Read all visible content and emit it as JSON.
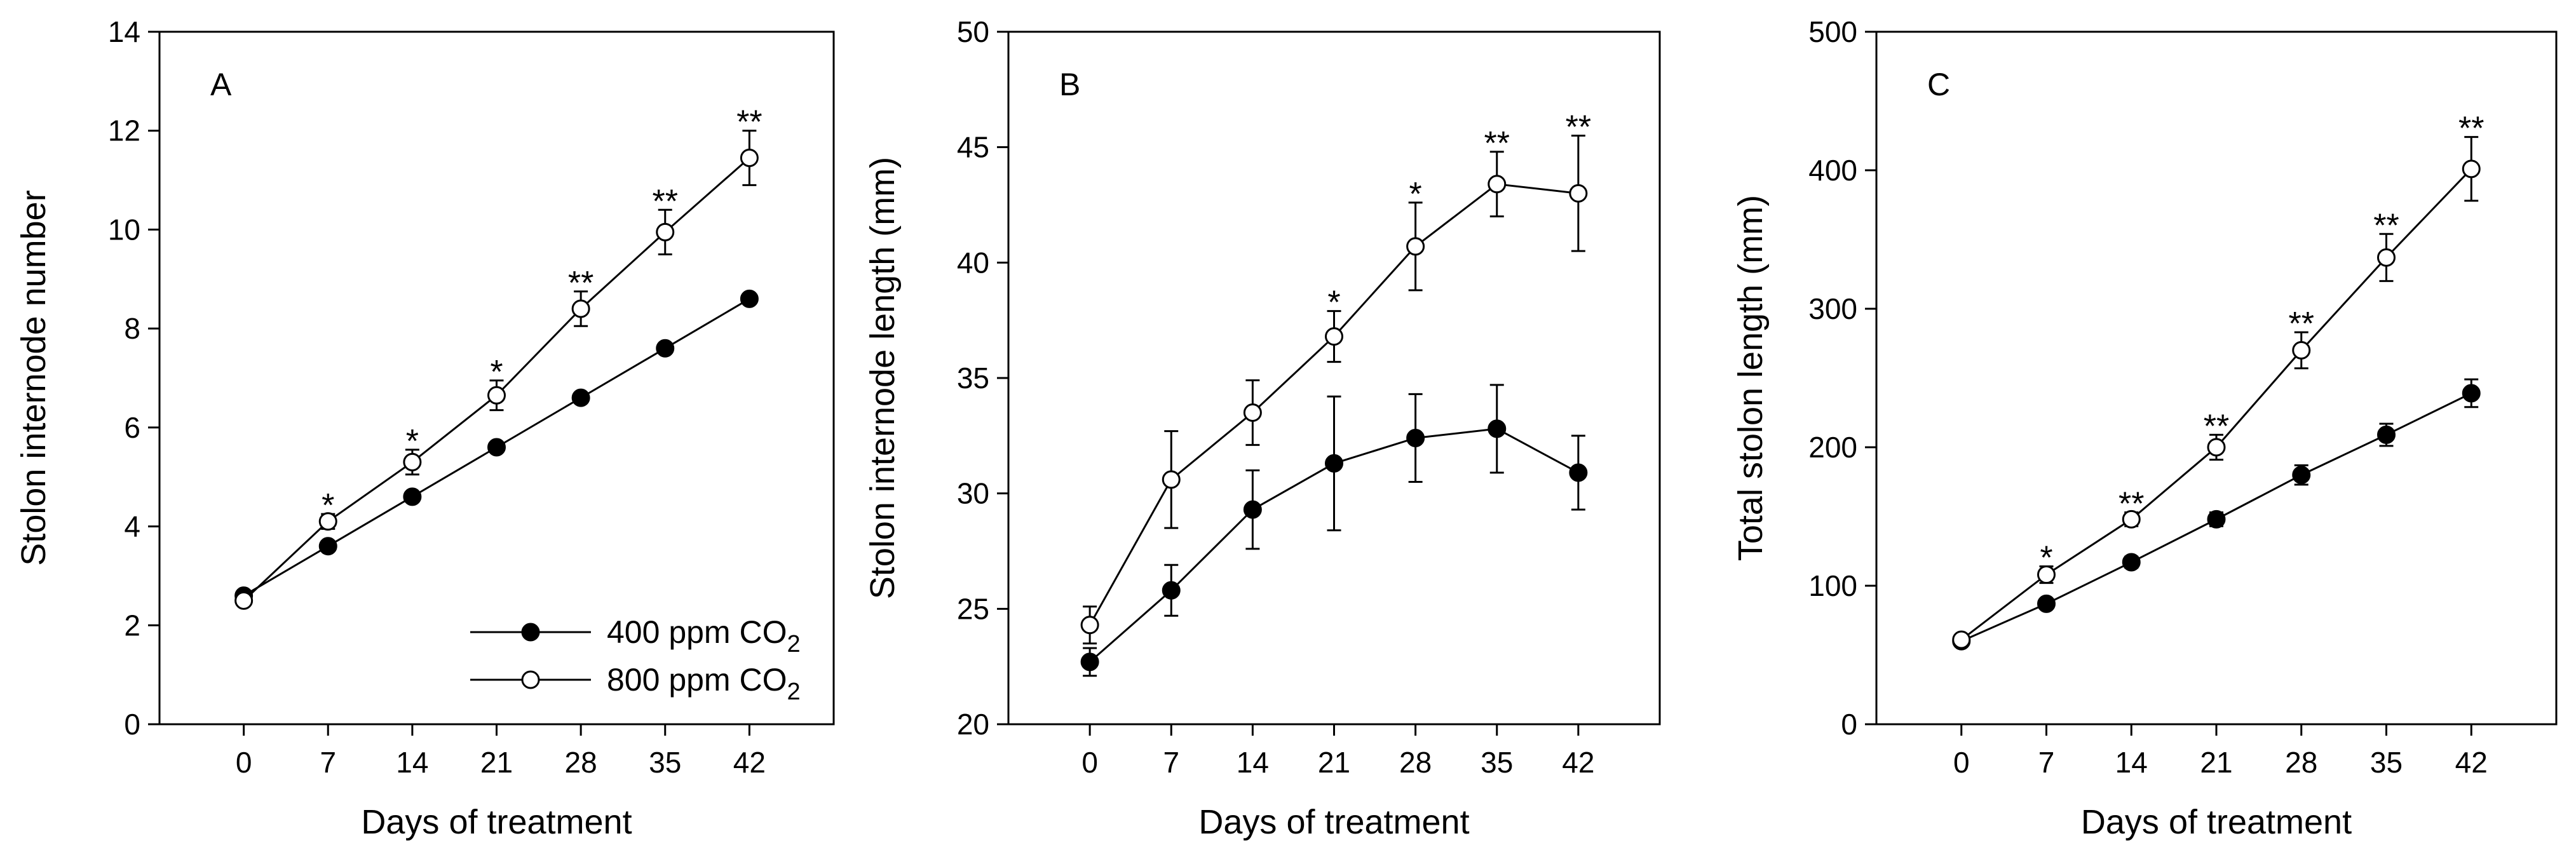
{
  "chart_data": [
    {
      "type": "line",
      "panel_label": "A",
      "xlabel": "Days of treatment",
      "ylabel": "Stolon internode number",
      "x": [
        0,
        7,
        14,
        21,
        28,
        35,
        42
      ],
      "x_tick_labels": [
        "0",
        "7",
        "14",
        "21",
        "28",
        "35",
        "42"
      ],
      "xlim": [
        -7,
        49
      ],
      "ylim": [
        0,
        14
      ],
      "y_ticks": [
        0,
        2,
        4,
        6,
        8,
        10,
        12,
        14
      ],
      "y_tick_labels": [
        "0",
        "2",
        "4",
        "6",
        "8",
        "10",
        "12",
        "14"
      ],
      "series": [
        {
          "name": "400 ppm CO2",
          "marker": "filled",
          "values": [
            2.6,
            3.6,
            4.6,
            5.6,
            6.6,
            7.6,
            8.6
          ],
          "errors": [
            0.05,
            0.1,
            0.1,
            0.1,
            0.1,
            0.1,
            0.1
          ]
        },
        {
          "name": "800 ppm CO2",
          "marker": "open",
          "values": [
            2.5,
            4.1,
            5.3,
            6.65,
            8.4,
            9.95,
            11.45
          ],
          "errors": [
            0.05,
            0.15,
            0.25,
            0.3,
            0.35,
            0.45,
            0.55
          ]
        }
      ],
      "significance": [
        "",
        "*",
        "*",
        "*",
        "**",
        "**",
        "**"
      ],
      "legend": {
        "placement": "bottom-right",
        "entries": [
          {
            "label": "400 ppm CO",
            "sub": "2",
            "marker": "filled"
          },
          {
            "label": "800 ppm CO",
            "sub": "2",
            "marker": "open"
          }
        ]
      }
    },
    {
      "type": "line",
      "panel_label": "B",
      "xlabel": "Days of treatment",
      "ylabel": "Stolon internode length (mm)",
      "x": [
        0,
        7,
        14,
        21,
        28,
        35,
        42
      ],
      "x_tick_labels": [
        "0",
        "7",
        "14",
        "21",
        "28",
        "35",
        "42"
      ],
      "xlim": [
        -7,
        49
      ],
      "ylim": [
        20,
        50
      ],
      "y_ticks": [
        20,
        25,
        30,
        35,
        40,
        45,
        50
      ],
      "y_tick_labels": [
        "20",
        "25",
        "30",
        "35",
        "40",
        "45",
        "50"
      ],
      "series": [
        {
          "name": "400 ppm CO2",
          "marker": "filled",
          "values": [
            22.7,
            25.8,
            29.3,
            31.3,
            32.4,
            32.8,
            30.9
          ],
          "errors": [
            0.6,
            1.1,
            1.7,
            2.9,
            1.9,
            1.9,
            1.6
          ]
        },
        {
          "name": "800 ppm CO2",
          "marker": "open",
          "values": [
            24.3,
            30.6,
            33.5,
            36.8,
            40.7,
            43.4,
            43.0
          ],
          "errors": [
            0.8,
            2.1,
            1.4,
            1.1,
            1.9,
            1.4,
            2.5
          ]
        }
      ],
      "significance": [
        "",
        "",
        "",
        "*",
        "*",
        "**",
        "**"
      ]
    },
    {
      "type": "line",
      "panel_label": "C",
      "xlabel": "Days of treatment",
      "ylabel": "Total stolon length (mm)",
      "x": [
        0,
        7,
        14,
        21,
        28,
        35,
        42
      ],
      "x_tick_labels": [
        "0",
        "7",
        "14",
        "21",
        "28",
        "35",
        "42"
      ],
      "xlim": [
        -7,
        49
      ],
      "ylim": [
        0,
        500
      ],
      "y_ticks": [
        0,
        100,
        200,
        300,
        400,
        500
      ],
      "y_tick_labels": [
        "0",
        "100",
        "200",
        "300",
        "400",
        "500"
      ],
      "series": [
        {
          "name": "400 ppm CO2",
          "marker": "filled",
          "values": [
            60,
            87,
            117,
            148,
            180,
            209,
            239
          ],
          "errors": [
            2,
            3,
            4,
            5,
            7,
            8,
            10
          ]
        },
        {
          "name": "800 ppm CO2",
          "marker": "open",
          "values": [
            61,
            108,
            148,
            200,
            270,
            337,
            401
          ],
          "errors": [
            2,
            6,
            5,
            9,
            13,
            17,
            23
          ]
        }
      ],
      "significance": [
        "",
        "*",
        "**",
        "**",
        "**",
        "**",
        "**"
      ]
    }
  ]
}
